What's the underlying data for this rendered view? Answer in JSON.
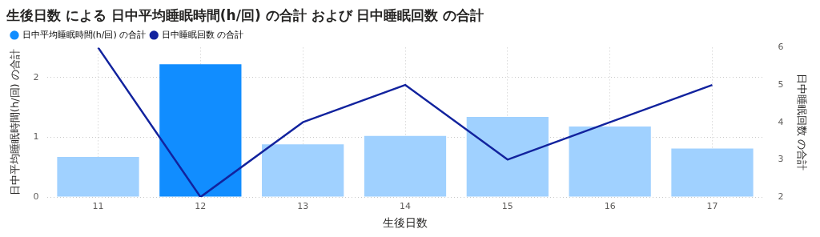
{
  "chart_data": {
    "type": "bar",
    "title": "生後日数 による 日中平均睡眠時間(h/回) の合計 および 日中睡眠回数 の合計",
    "xlabel": "生後日数",
    "ylabel": "日中平均睡眠時間(h/回) の合計",
    "y2label": "日中睡眠回数 の合計",
    "categories": [
      "11",
      "12",
      "13",
      "14",
      "15",
      "16",
      "17"
    ],
    "series": [
      {
        "name": "日中平均睡眠時間(h/回) の合計",
        "color": "#118dff",
        "colors": [
          "#a0d1ff",
          "#118dff",
          "#a0d1ff",
          "#a0d1ff",
          "#a0d1ff",
          "#a0d1ff",
          "#a0d1ff"
        ],
        "values": [
          0.67,
          2.22,
          0.88,
          1.02,
          1.34,
          1.18,
          0.81
        ]
      },
      {
        "name": "日中睡眠回数 の合計",
        "type": "line",
        "axis": "y2",
        "color": "#12239e",
        "values": [
          6,
          2,
          4,
          5,
          3,
          4,
          5
        ]
      }
    ],
    "ylim": [
      0,
      2.5
    ],
    "yticks": [
      0,
      1,
      2
    ],
    "y2lim": [
      2,
      6
    ],
    "y2ticks": [
      2,
      3,
      4,
      5,
      6
    ],
    "grid": true,
    "legend": "top left",
    "marker": "none",
    "line_style": "solid"
  }
}
